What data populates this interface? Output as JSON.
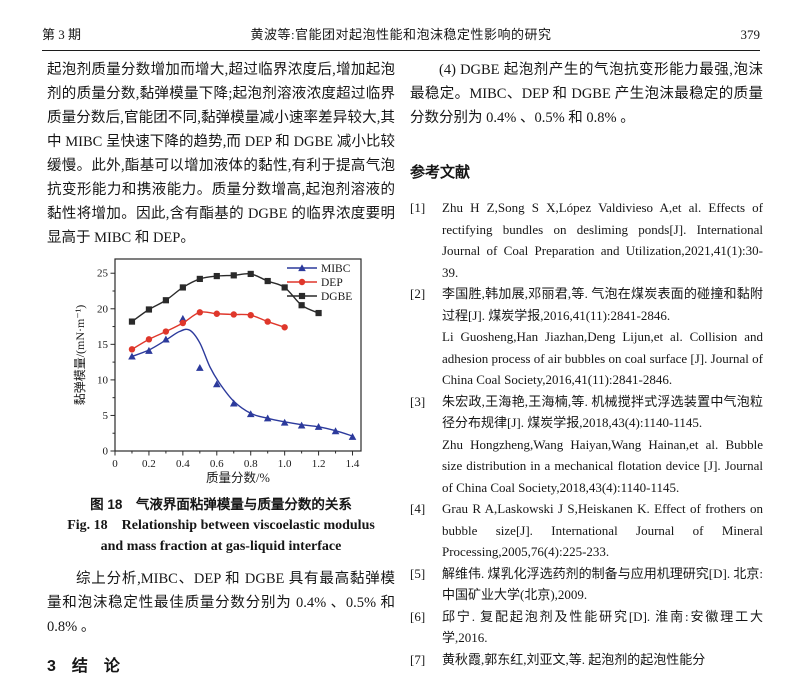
{
  "header": {
    "issue": "第 3 期",
    "title": "黄波等:官能团对起泡性能和泡沫稳定性影响的研究",
    "page": "379"
  },
  "left_column": {
    "para1": "起泡剂质量分数增加而增大,超过临界浓度后,增加起泡剂的质量分数,黏弹模量下降;起泡剂溶液浓度超过临界质量分数后,官能团不同,黏弹模量减小速率差异较大,其中 MIBC 呈快速下降的趋势,而 DEP 和 DGBE 减小比较缓慢。此外,酯基可以增加液体的黏性,有利于提高气泡抗变形能力和携液能力。质量分数增高,起泡剂溶液的黏性将增加。因此,含有酯基的 DGBE 的临界浓度要明显高于 MIBC 和 DEP。",
    "para2": "综上分析,MIBC、DEP 和 DGBE 具有最高黏弹模量和泡沫稳定性最佳质量分数分别为 0.4% 、0.5% 和 0.8% 。",
    "conclusion_heading": "3　结　论"
  },
  "figure": {
    "caption_cn": "图 18　气液界面粘弹模量与质量分数的关系",
    "caption_en_line1": "Fig. 18　Relationship between viscoelastic modulus",
    "caption_en_line2": "and mass fraction at gas-liquid interface"
  },
  "right_column": {
    "para": "(4) DGBE 起泡剂产生的气泡抗变形能力最强,泡沫最稳定。MIBC、DEP 和 DGBE 产生泡沫最稳定的质量分数分别为 0.4% 、0.5% 和 0.8% 。"
  },
  "references": {
    "heading": "参考文献",
    "items": [
      {
        "num": "[1]",
        "parts": [
          "Zhu H Z,Song S X,López Valdivieso A,et al. Effects of rectifying bundles on desliming ponds[J]. International Journal of Coal Preparation and Utilization,2021,41(1):30-39."
        ]
      },
      {
        "num": "[2]",
        "parts": [
          "李国胜,韩加展,邓丽君,等. 气泡在煤炭表面的碰撞和黏附过程[J]. 煤炭学报,2016,41(11):2841-2846.",
          "Li Guosheng,Han Jiazhan,Deng Lijun,et al. Collision and adhesion process of air bubbles on coal surface [J]. Journal of China Coal Society,2016,41(11):2841-2846."
        ]
      },
      {
        "num": "[3]",
        "parts": [
          "朱宏政,王海艳,王海楠,等. 机械搅拌式浮选装置中气泡粒径分布规律[J]. 煤炭学报,2018,43(4):1140-1145.",
          "Zhu Hongzheng,Wang Haiyan,Wang Hainan,et al. Bubble size distribution in a mechanical flotation device [J]. Journal of China Coal Society,2018,43(4):1140-1145."
        ]
      },
      {
        "num": "[4]",
        "parts": [
          "Grau R A,Laskowski J S,Heiskanen K. Effect of frothers on bubble size[J]. International Journal of Mineral Processing,2005,76(4):225-233."
        ]
      },
      {
        "num": "[5]",
        "parts": [
          "解维伟. 煤乳化浮选药剂的制备与应用机理研究[D]. 北京:中国矿业大学(北京),2009."
        ]
      },
      {
        "num": "[6]",
        "parts": [
          "邱宁. 复配起泡剂及性能研究[D]. 淮南:安徽理工大学,2016."
        ]
      },
      {
        "num": "[7]",
        "parts": [
          "黄秋霞,郭东红,刘亚文,等. 起泡剂的起泡性能分"
        ]
      }
    ]
  },
  "chart_data": {
    "type": "line",
    "title": "",
    "xlabel": "质量分数/%",
    "ylabel": "黏弹模量/(mN·m⁻¹)",
    "xlim": [
      0,
      1.45
    ],
    "ylim": [
      0,
      27
    ],
    "x_ticks": [
      0,
      0.2,
      0.4,
      0.6,
      0.8,
      1.0,
      1.2,
      1.4
    ],
    "y_ticks": [
      0,
      5,
      10,
      15,
      20,
      25
    ],
    "x_minor_step": 0.1,
    "y_minor_step": 2.5,
    "grid": false,
    "legend_position": "top-right",
    "series": [
      {
        "name": "MIBC",
        "color": "#2c3a9c",
        "marker": "triangle",
        "x": [
          0.1,
          0.2,
          0.3,
          0.4,
          0.5,
          0.6,
          0.7,
          0.8,
          0.9,
          1.0,
          1.1,
          1.2,
          1.3,
          1.4
        ],
        "values": [
          13.3,
          14.1,
          15.7,
          18.6,
          11.7,
          9.4,
          6.7,
          5.2,
          4.6,
          4.0,
          3.6,
          3.4,
          2.8,
          2.0
        ],
        "fit_line": {
          "x": [
            0.1,
            0.2,
            0.3,
            0.38,
            0.44,
            0.5,
            0.56,
            0.62,
            0.7,
            0.8,
            0.9,
            1.0,
            1.1,
            1.2,
            1.3,
            1.4
          ],
          "y": [
            13.3,
            14.2,
            15.6,
            16.8,
            17.0,
            15.2,
            11.8,
            9.4,
            7.0,
            5.3,
            4.6,
            4.1,
            3.7,
            3.4,
            2.85,
            2.1
          ]
        }
      },
      {
        "name": "DEP",
        "color": "#df372b",
        "marker": "circle",
        "x": [
          0.1,
          0.2,
          0.3,
          0.4,
          0.5,
          0.6,
          0.7,
          0.8,
          0.9,
          1.0
        ],
        "values": [
          14.3,
          15.7,
          16.8,
          18.0,
          19.5,
          19.3,
          19.2,
          19.1,
          18.2,
          17.4
        ]
      },
      {
        "name": "DGBE",
        "color": "#2a2a2a",
        "marker": "square",
        "x": [
          0.1,
          0.2,
          0.3,
          0.4,
          0.5,
          0.6,
          0.7,
          0.8,
          0.9,
          1.0,
          1.1,
          1.2
        ],
        "values": [
          18.2,
          19.9,
          21.2,
          23.0,
          24.2,
          24.6,
          24.7,
          24.9,
          23.9,
          23.0,
          20.5,
          19.4
        ]
      }
    ]
  }
}
